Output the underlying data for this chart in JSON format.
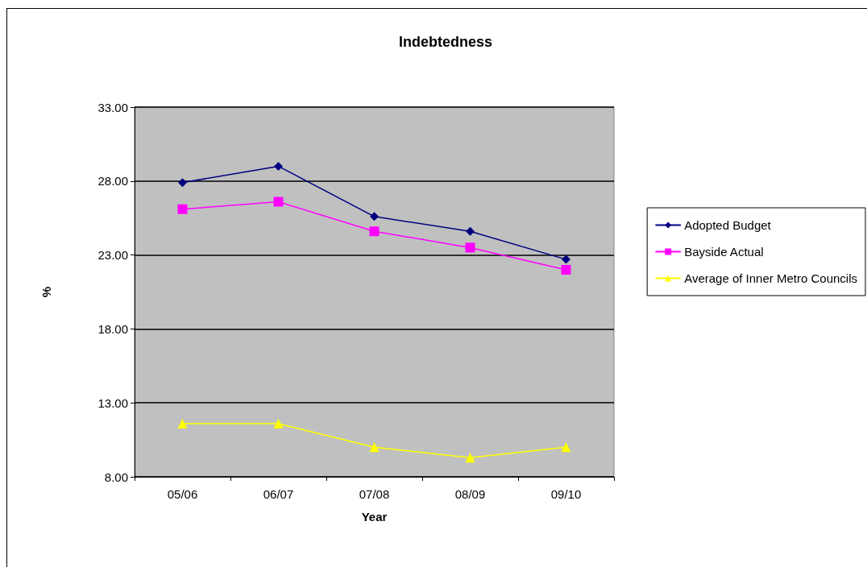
{
  "chart_data": {
    "type": "line",
    "title": "Indebtedness",
    "xlabel": "Year",
    "ylabel": "%",
    "categories": [
      "05/06",
      "06/07",
      "07/08",
      "08/09",
      "09/10"
    ],
    "series": [
      {
        "name": "Adopted Budget",
        "color": "#000080",
        "marker": "diamond",
        "values": [
          27.9,
          29.0,
          25.6,
          24.6,
          22.7
        ]
      },
      {
        "name": "Bayside Actual",
        "color": "#ff00ff",
        "marker": "square",
        "values": [
          26.1,
          26.6,
          24.6,
          23.5,
          22.0
        ]
      },
      {
        "name": "Average of Inner Metro Councils",
        "color": "#ffff00",
        "marker": "triangle",
        "values": [
          11.6,
          11.6,
          10.0,
          9.3,
          10.0
        ]
      }
    ],
    "ylim": [
      8,
      33
    ],
    "yticks": [
      {
        "value": 8,
        "label": "8.00"
      },
      {
        "value": 13,
        "label": "13.00"
      },
      {
        "value": 18,
        "label": "18.00"
      },
      {
        "value": 23,
        "label": "23.00"
      },
      {
        "value": 28,
        "label": "28.00"
      },
      {
        "value": 33,
        "label": "33.00"
      }
    ],
    "grid": "y",
    "legend": "right",
    "line_style": "solid"
  }
}
